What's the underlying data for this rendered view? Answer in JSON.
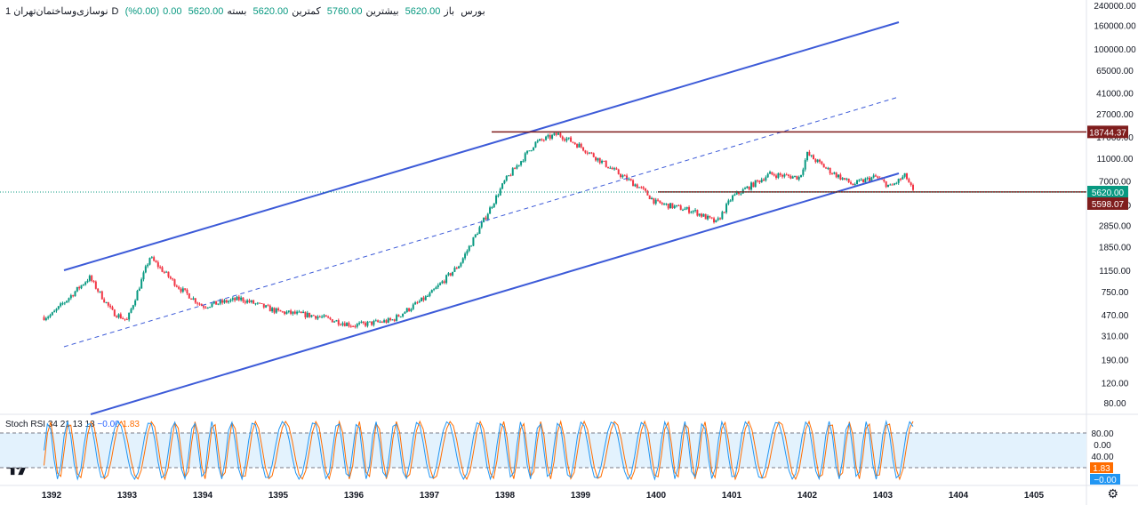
{
  "header": {
    "symbol": "نوسازی‌وساختمان‌تهران",
    "interval": "1D",
    "exchange": "بورس",
    "open_label": "باز",
    "open_value": "5620.00",
    "high_label": "بیشترین",
    "high_value": "5760.00",
    "low_label": "کمترین",
    "low_value": "5620.00",
    "close_label": "بسته",
    "close_value": "5620.00",
    "change_value": "0.00",
    "change_pct": "(0.00%)"
  },
  "oscillator": {
    "name": "Stoch RSI",
    "params": "34 21 13 13",
    "k_value": "−0.00",
    "d_value": "1.83",
    "upper_band": 80,
    "lower_band": 20,
    "badge_d": "1.83",
    "badge_k": "−0.00"
  },
  "price_badges": {
    "resistance": "18744.37",
    "last_price": "5620.00",
    "support": "5598.07"
  },
  "colors": {
    "up": "#089981",
    "down": "#f23645",
    "channel": "#3d5bd8",
    "level": "#7f1d1d",
    "k_line": "#2196f3",
    "d_line": "#ff6d00",
    "band_fill": "#e3f2fd"
  },
  "icons": {
    "logo": "tradingview-logo",
    "settings": "gear-icon"
  },
  "chart_data": {
    "type": "candlestick",
    "scale": "log",
    "y_axis_ticks": [
      240000,
      160000,
      100000,
      65000,
      41000,
      27000,
      17000,
      11000,
      7000,
      4300,
      2850,
      1850,
      1150,
      750,
      470,
      310,
      190,
      120,
      80
    ],
    "x_axis_ticks": [
      "1392",
      "1393",
      "1394",
      "1395",
      "1396",
      "1397",
      "1398",
      "1399",
      "1400",
      "1401",
      "1402",
      "1403",
      "1404",
      "1405"
    ],
    "osc_axis_ticks": [
      80,
      40,
      0
    ],
    "price_path": [
      [
        "1392",
        470
      ],
      [
        "1392.5",
        1000
      ],
      [
        "1392.8",
        500
      ],
      [
        "1393",
        420
      ],
      [
        "1393.3",
        1500
      ],
      [
        "1393.7",
        800
      ],
      [
        "1394",
        560
      ],
      [
        "1394.5",
        650
      ],
      [
        "1395",
        500
      ],
      [
        "1395.5",
        460
      ],
      [
        "1396",
        380
      ],
      [
        "1396.5",
        420
      ],
      [
        "1397",
        700
      ],
      [
        "1397.4",
        1300
      ],
      [
        "1397.7",
        3000
      ],
      [
        "1398",
        7000
      ],
      [
        "1398.4",
        15000
      ],
      [
        "1398.7",
        18000
      ],
      [
        "1399",
        14000
      ],
      [
        "1399.4",
        9000
      ],
      [
        "1399.8",
        6000
      ],
      [
        "1400",
        4500
      ],
      [
        "1400.5",
        3800
      ],
      [
        "1400.8",
        3000
      ],
      [
        "1401",
        5000
      ],
      [
        "1401.5",
        8000
      ],
      [
        "1401.9",
        7500
      ],
      [
        "1402",
        12000
      ],
      [
        "1402.3",
        8500
      ],
      [
        "1402.6",
        6500
      ],
      [
        "1402.9",
        7600
      ],
      [
        "1403.1",
        6200
      ],
      [
        "1403.3",
        7800
      ],
      [
        "1403.4",
        5620
      ]
    ],
    "levels": [
      18744.37,
      5598.07
    ],
    "channel": "ascending"
  }
}
